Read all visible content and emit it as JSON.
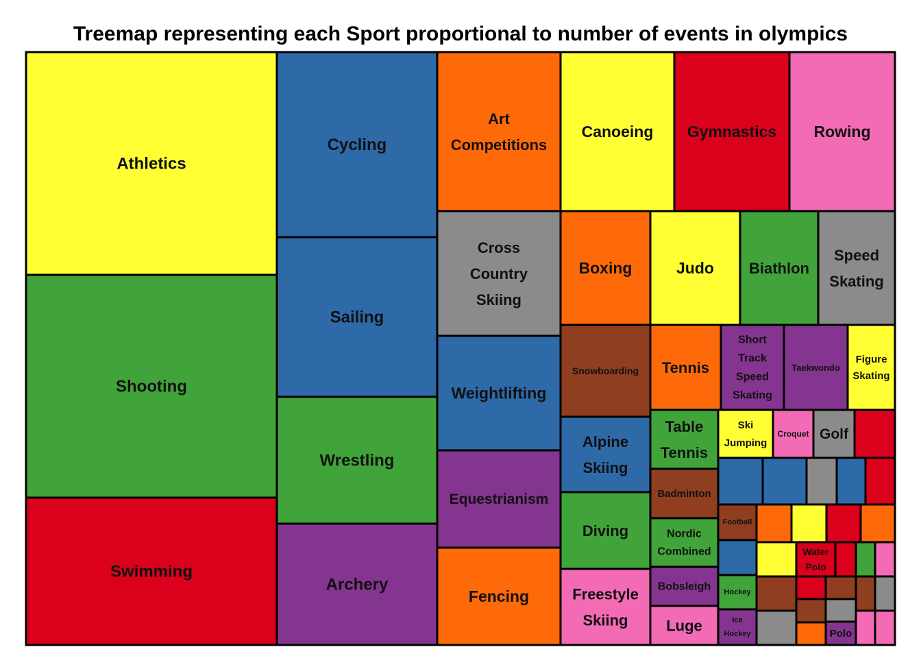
{
  "palette": {
    "yellow": "#ffff33",
    "green": "#41a43a",
    "red": "#db001b",
    "blue": "#2e69a8",
    "purple": "#84358f",
    "orange": "#fe6a0a",
    "gray": "#8b8b8b",
    "pink": "#f36bb4",
    "brown": "#8f3e1f"
  },
  "chart_data": {
    "type": "treemap",
    "title": "Treemap representing each Sport proportional to number of events in olympics",
    "tiles": [
      {
        "label": "Athletics",
        "color": "yellow"
      },
      {
        "label": "Shooting",
        "color": "green"
      },
      {
        "label": "Swimming",
        "color": "red"
      },
      {
        "label": "Cycling",
        "color": "blue"
      },
      {
        "label": "Sailing",
        "color": "blue"
      },
      {
        "label": "Wrestling",
        "color": "green"
      },
      {
        "label": "Archery",
        "color": "purple"
      },
      {
        "label": "Art Competitions",
        "color": "orange"
      },
      {
        "label": "Cross Country Skiing",
        "color": "gray"
      },
      {
        "label": "Weightlifting",
        "color": "blue"
      },
      {
        "label": "Equestrianism",
        "color": "purple"
      },
      {
        "label": "Fencing",
        "color": "orange"
      },
      {
        "label": "Canoeing",
        "color": "yellow"
      },
      {
        "label": "Gymnastics",
        "color": "red"
      },
      {
        "label": "Rowing",
        "color": "pink"
      },
      {
        "label": "Boxing",
        "color": "orange"
      },
      {
        "label": "Judo",
        "color": "yellow"
      },
      {
        "label": "Biathlon",
        "color": "green"
      },
      {
        "label": "Speed Skating",
        "color": "gray"
      },
      {
        "label": "Snowboarding",
        "color": "brown"
      },
      {
        "label": "Tennis",
        "color": "orange"
      },
      {
        "label": "Short Track Speed Skating",
        "color": "purple"
      },
      {
        "label": "Taekwondo",
        "color": "purple"
      },
      {
        "label": "Figure Skating",
        "color": "yellow"
      },
      {
        "label": "Alpine Skiing",
        "color": "blue"
      },
      {
        "label": "Diving",
        "color": "green"
      },
      {
        "label": "Freestyle Skiing",
        "color": "pink"
      },
      {
        "label": "Table Tennis",
        "color": "green"
      },
      {
        "label": "Badminton",
        "color": "brown"
      },
      {
        "label": "Nordic Combined",
        "color": "green"
      },
      {
        "label": "Bobsleigh",
        "color": "purple"
      },
      {
        "label": "Luge",
        "color": "pink"
      },
      {
        "label": "Ski Jumping",
        "color": "yellow"
      },
      {
        "label": "Croquet",
        "color": "pink"
      },
      {
        "label": "Golf",
        "color": "gray"
      },
      {
        "label": "",
        "color": "red"
      },
      {
        "label": "",
        "color": "blue"
      },
      {
        "label": "",
        "color": "blue"
      },
      {
        "label": "",
        "color": "gray"
      },
      {
        "label": "",
        "color": "blue"
      },
      {
        "label": "",
        "color": "red"
      },
      {
        "label": "Football",
        "color": "brown"
      },
      {
        "label": "",
        "color": "orange"
      },
      {
        "label": "",
        "color": "yellow"
      },
      {
        "label": "",
        "color": "red"
      },
      {
        "label": "",
        "color": "orange"
      },
      {
        "label": "",
        "color": "blue"
      },
      {
        "label": "",
        "color": "yellow"
      },
      {
        "label": "Water Polo",
        "color": "red"
      },
      {
        "label": "",
        "color": "red"
      },
      {
        "label": "",
        "color": "green"
      },
      {
        "label": "",
        "color": "pink"
      },
      {
        "label": "Hockey",
        "color": "green"
      },
      {
        "label": "",
        "color": "brown"
      },
      {
        "label": "",
        "color": "red"
      },
      {
        "label": "",
        "color": "brown"
      },
      {
        "label": "",
        "color": "brown"
      },
      {
        "label": "",
        "color": "gray"
      },
      {
        "label": "",
        "color": "brown"
      },
      {
        "label": "",
        "color": "gray"
      },
      {
        "label": "Ice Hockey",
        "color": "purple"
      },
      {
        "label": "",
        "color": "gray"
      },
      {
        "label": "",
        "color": "orange"
      },
      {
        "label": "Polo",
        "color": "purple"
      },
      {
        "label": "",
        "color": "pink"
      },
      {
        "label": "",
        "color": "pink"
      }
    ]
  }
}
